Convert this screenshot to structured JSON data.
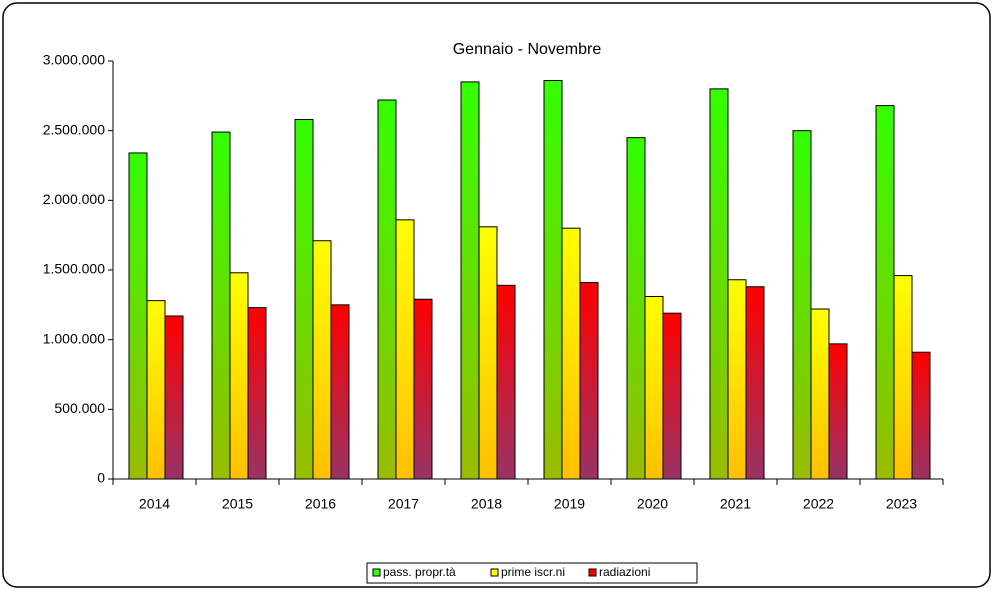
{
  "chart_data": {
    "type": "bar",
    "title": "Gennaio  - Novembre",
    "categories": [
      "2014",
      "2015",
      "2016",
      "2017",
      "2018",
      "2019",
      "2020",
      "2021",
      "2022",
      "2023"
    ],
    "series": [
      {
        "name": "pass. propr.tà",
        "color": "#33ff00",
        "values": [
          2340000,
          2490000,
          2580000,
          2720000,
          2850000,
          2860000,
          2450000,
          2800000,
          2500000,
          2680000
        ]
      },
      {
        "name": "prime iscr.ni",
        "color": "#ffff00",
        "values": [
          1280000,
          1480000,
          1710000,
          1860000,
          1810000,
          1800000,
          1310000,
          1430000,
          1220000,
          1460000
        ]
      },
      {
        "name": "radiazioni",
        "color": "#ff0000",
        "values": [
          1170000,
          1230000,
          1250000,
          1290000,
          1390000,
          1410000,
          1190000,
          1380000,
          970000,
          910000
        ]
      }
    ],
    "ylim": [
      0,
      3000000
    ],
    "yticks": [
      0,
      {
        "value": 500000,
        "label": "500.000"
      },
      {
        "value": 1000000,
        "label": "1.000.000"
      },
      {
        "value": 1500000,
        "label": "1.500.000"
      },
      {
        "value": 2000000,
        "label": "2.000.000"
      },
      {
        "value": 2500000,
        "label": "2.500.000"
      },
      {
        "value": 3000000,
        "label": "3.000.000"
      }
    ],
    "legend": "bottom"
  }
}
